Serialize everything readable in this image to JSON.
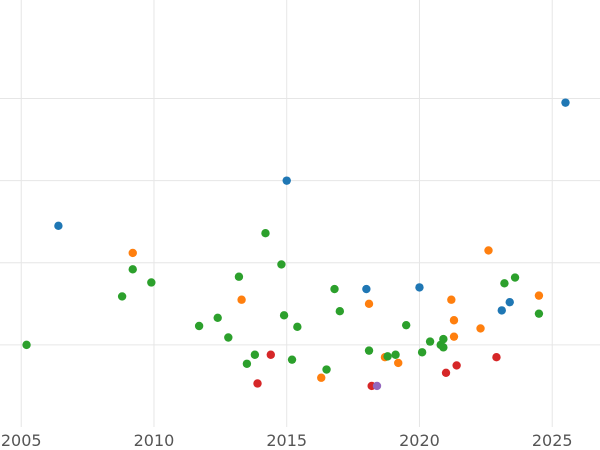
{
  "chart_data": {
    "type": "scatter",
    "title": "",
    "xlabel": "",
    "ylabel": "",
    "xlim": [
      2004.2,
      2026.8
    ],
    "ylim": [
      0,
      5.2
    ],
    "x_ticks": [
      2005,
      2010,
      2015,
      2020,
      2025
    ],
    "x_tick_labels": [
      "2005",
      "2010",
      "2015",
      "2020",
      "2025"
    ],
    "y_gridlines": [
      1,
      2,
      3,
      4
    ],
    "grid": true,
    "legend": "none",
    "series": [
      {
        "color": "#1f77b4",
        "points": [
          {
            "x": 2006.4,
            "y": 2.45
          },
          {
            "x": 2015.0,
            "y": 3.0
          },
          {
            "x": 2018.0,
            "y": 1.68
          },
          {
            "x": 2020.0,
            "y": 1.7
          },
          {
            "x": 2023.1,
            "y": 1.42
          },
          {
            "x": 2023.4,
            "y": 1.52
          },
          {
            "x": 2025.5,
            "y": 3.95
          }
        ]
      },
      {
        "color": "#ff7f0e",
        "points": [
          {
            "x": 2009.2,
            "y": 2.12
          },
          {
            "x": 2013.3,
            "y": 1.55
          },
          {
            "x": 2016.3,
            "y": 0.6
          },
          {
            "x": 2018.1,
            "y": 1.5
          },
          {
            "x": 2018.7,
            "y": 0.85
          },
          {
            "x": 2019.2,
            "y": 0.78
          },
          {
            "x": 2021.2,
            "y": 1.55
          },
          {
            "x": 2021.3,
            "y": 1.3
          },
          {
            "x": 2021.3,
            "y": 1.1
          },
          {
            "x": 2022.3,
            "y": 1.2
          },
          {
            "x": 2022.6,
            "y": 2.15
          },
          {
            "x": 2024.5,
            "y": 1.6
          }
        ]
      },
      {
        "color": "#2ca02c",
        "points": [
          {
            "x": 2005.2,
            "y": 1.0
          },
          {
            "x": 2008.8,
            "y": 1.59
          },
          {
            "x": 2009.2,
            "y": 1.92
          },
          {
            "x": 2009.9,
            "y": 1.76
          },
          {
            "x": 2011.7,
            "y": 1.23
          },
          {
            "x": 2012.4,
            "y": 1.33
          },
          {
            "x": 2012.8,
            "y": 1.09
          },
          {
            "x": 2013.2,
            "y": 1.83
          },
          {
            "x": 2013.5,
            "y": 0.77
          },
          {
            "x": 2013.8,
            "y": 0.88
          },
          {
            "x": 2014.2,
            "y": 2.36
          },
          {
            "x": 2014.8,
            "y": 1.98
          },
          {
            "x": 2014.9,
            "y": 1.36
          },
          {
            "x": 2015.2,
            "y": 0.82
          },
          {
            "x": 2015.4,
            "y": 1.22
          },
          {
            "x": 2016.5,
            "y": 0.7
          },
          {
            "x": 2016.8,
            "y": 1.68
          },
          {
            "x": 2017.0,
            "y": 1.41
          },
          {
            "x": 2018.1,
            "y": 0.93
          },
          {
            "x": 2018.8,
            "y": 0.86
          },
          {
            "x": 2019.1,
            "y": 0.88
          },
          {
            "x": 2019.5,
            "y": 1.24
          },
          {
            "x": 2020.1,
            "y": 0.91
          },
          {
            "x": 2020.4,
            "y": 1.04
          },
          {
            "x": 2020.8,
            "y": 1.0
          },
          {
            "x": 2020.9,
            "y": 0.97
          },
          {
            "x": 2020.9,
            "y": 1.07
          },
          {
            "x": 2023.2,
            "y": 1.75
          },
          {
            "x": 2023.6,
            "y": 1.82
          },
          {
            "x": 2024.5,
            "y": 1.38
          }
        ]
      },
      {
        "color": "#d62728",
        "points": [
          {
            "x": 2013.9,
            "y": 0.53
          },
          {
            "x": 2014.4,
            "y": 0.88
          },
          {
            "x": 2018.2,
            "y": 0.5
          },
          {
            "x": 2021.0,
            "y": 0.66
          },
          {
            "x": 2021.4,
            "y": 0.75
          },
          {
            "x": 2022.9,
            "y": 0.85
          }
        ]
      },
      {
        "color": "#9467bd",
        "points": [
          {
            "x": 2018.4,
            "y": 0.5
          }
        ]
      }
    ]
  }
}
